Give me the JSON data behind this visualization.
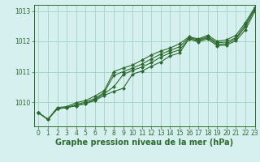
{
  "background_color": "#d6f0f0",
  "grid_color": "#a8d8c8",
  "line_color": "#2d6a2d",
  "marker_color": "#2d6a2d",
  "xlabel": "Graphe pression niveau de la mer (hPa)",
  "xlabel_fontsize": 7,
  "ylim": [
    1009.2,
    1013.2
  ],
  "xlim": [
    -0.5,
    23
  ],
  "yticks": [
    1010,
    1011,
    1012,
    1013
  ],
  "xticks": [
    0,
    1,
    2,
    3,
    4,
    5,
    6,
    7,
    8,
    9,
    10,
    11,
    12,
    13,
    14,
    15,
    16,
    17,
    18,
    19,
    20,
    21,
    22,
    23
  ],
  "series": [
    [
      1009.65,
      1009.43,
      1009.78,
      1009.82,
      1009.88,
      1009.95,
      1010.05,
      1010.22,
      1010.35,
      1010.45,
      1010.92,
      1011.02,
      1011.18,
      1011.32,
      1011.52,
      1011.62,
      1012.08,
      1011.98,
      1012.08,
      1011.85,
      1011.88,
      1012.02,
      1012.38,
      1012.98
    ],
    [
      1009.65,
      1009.43,
      1009.78,
      1009.82,
      1009.88,
      1009.95,
      1010.08,
      1010.28,
      1010.5,
      1010.9,
      1011.05,
      1011.15,
      1011.3,
      1011.48,
      1011.62,
      1011.72,
      1012.08,
      1012.02,
      1012.12,
      1011.9,
      1011.92,
      1012.08,
      1012.48,
      1013.05
    ],
    [
      1009.65,
      1009.43,
      1009.78,
      1009.82,
      1009.92,
      1010.0,
      1010.12,
      1010.32,
      1010.88,
      1011.0,
      1011.12,
      1011.25,
      1011.42,
      1011.58,
      1011.7,
      1011.82,
      1012.12,
      1012.05,
      1012.15,
      1011.95,
      1011.98,
      1012.12,
      1012.55,
      1013.08
    ],
    [
      1009.65,
      1009.43,
      1009.82,
      1009.85,
      1009.98,
      1010.05,
      1010.2,
      1010.38,
      1011.0,
      1011.12,
      1011.22,
      1011.38,
      1011.55,
      1011.68,
      1011.78,
      1011.92,
      1012.15,
      1012.08,
      1012.2,
      1012.0,
      1012.05,
      1012.2,
      1012.62,
      1013.12
    ]
  ]
}
